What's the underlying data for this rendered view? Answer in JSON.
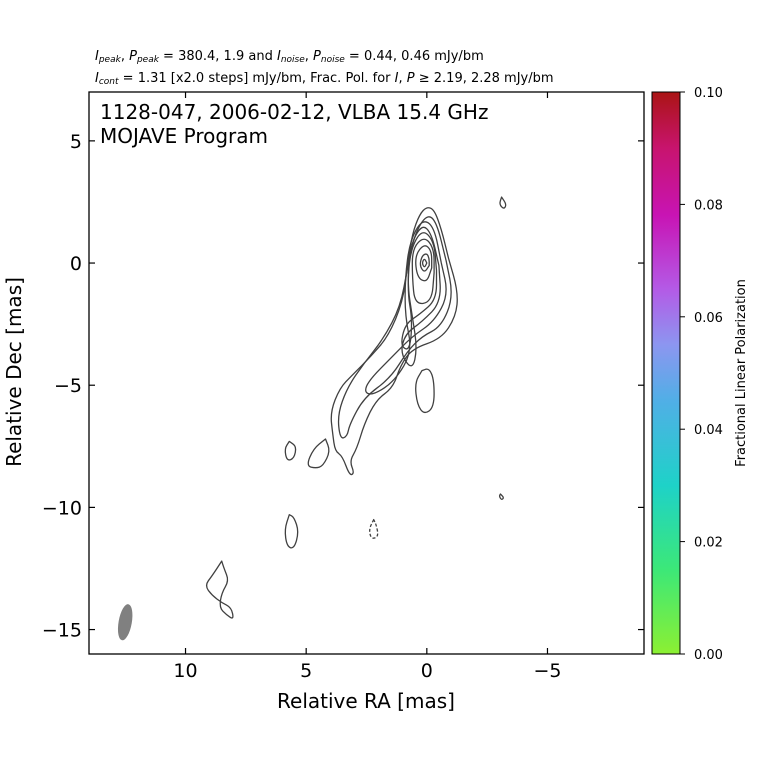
{
  "header": {
    "line1": {
      "parts": [
        {
          "t": "I",
          "i": true
        },
        {
          "t": "peak",
          "sub": true,
          "i": true
        },
        {
          "t": ", "
        },
        {
          "t": "P",
          "i": true
        },
        {
          "t": "peak",
          "sub": true,
          "i": true
        },
        {
          "t": " = 380.4, 1.9 and "
        },
        {
          "t": "I",
          "i": true
        },
        {
          "t": "noise",
          "sub": true,
          "i": true
        },
        {
          "t": ", "
        },
        {
          "t": "P",
          "i": true
        },
        {
          "t": "noise",
          "sub": true,
          "i": true
        },
        {
          "t": " = 0.44, 0.46 mJy/bm"
        }
      ]
    },
    "line2": {
      "parts": [
        {
          "t": "I",
          "i": true
        },
        {
          "t": "cont",
          "sub": true,
          "i": true
        },
        {
          "t": " = 1.31 [x2.0 steps] mJy/bm, Frac. Pol. for "
        },
        {
          "t": "I",
          "i": true
        },
        {
          "t": ", "
        },
        {
          "t": "P",
          "i": true
        },
        {
          "t": " ≥  2.19, 2.28 mJy/bm"
        }
      ]
    }
  },
  "chart_data": {
    "type": "contour",
    "annotation_line1": "1128-047, 2006-02-12, VLBA 15.4 GHz",
    "annotation_line2": "MOJAVE Program",
    "xlabel": "Relative RA [mas]",
    "ylabel": "Relative Dec [mas]",
    "xlim": [
      14,
      -9
    ],
    "ylim": [
      -16,
      7
    ],
    "xticks": [
      10,
      5,
      0,
      -5
    ],
    "xtick_labels": [
      "10",
      "5",
      "0",
      "−5"
    ],
    "yticks": [
      5,
      0,
      -5,
      -10,
      -15
    ],
    "ytick_labels": [
      "5",
      "0",
      "−5",
      "−10",
      "−15"
    ],
    "grid": false,
    "core": {
      "ra": 0.0,
      "dec": 0.0
    },
    "contour_levels_mJy": [
      1.31,
      2.62,
      5.24,
      10.48,
      20.96,
      41.92,
      83.84,
      167.68,
      335.36
    ],
    "contours": [
      {
        "level": "outer",
        "style": "solid",
        "points": [
          [
            -0.9,
            0.2
          ],
          [
            -1.3,
            -1.2
          ],
          [
            -1.2,
            -2.2
          ],
          [
            -0.6,
            -3.1
          ],
          [
            0.6,
            -3.5
          ],
          [
            1.1,
            -4.2
          ],
          [
            1.4,
            -5.1
          ],
          [
            2.1,
            -5.6
          ],
          [
            2.6,
            -6.6
          ],
          [
            2.9,
            -7.6
          ],
          [
            3.2,
            -8.1
          ],
          [
            3.0,
            -8.6
          ],
          [
            3.2,
            -8.7
          ],
          [
            3.5,
            -7.9
          ],
          [
            3.8,
            -7.7
          ],
          [
            3.9,
            -7.0
          ],
          [
            4.0,
            -6.1
          ],
          [
            3.6,
            -5.1
          ],
          [
            3.1,
            -4.6
          ],
          [
            2.3,
            -3.8
          ],
          [
            1.6,
            -3.0
          ],
          [
            1.0,
            -1.6
          ],
          [
            0.8,
            -0.1
          ],
          [
            0.6,
            1.2
          ],
          [
            0.3,
            2.0
          ],
          [
            0.0,
            2.3
          ],
          [
            -0.3,
            2.2
          ],
          [
            -0.6,
            1.4
          ],
          [
            -0.9,
            0.2
          ]
        ]
      },
      {
        "level": "2",
        "style": "solid",
        "points": [
          [
            -0.8,
            0.1
          ],
          [
            -1.1,
            -1.4
          ],
          [
            -0.6,
            -2.6
          ],
          [
            0.2,
            -3.0
          ],
          [
            0.8,
            -3.6
          ],
          [
            1.5,
            -4.7
          ],
          [
            2.6,
            -5.5
          ],
          [
            3.2,
            -6.6
          ],
          [
            3.3,
            -7.1
          ],
          [
            3.6,
            -7.2
          ],
          [
            3.7,
            -6.2
          ],
          [
            3.3,
            -5.1
          ],
          [
            2.6,
            -4.1
          ],
          [
            1.8,
            -3.1
          ],
          [
            1.1,
            -1.8
          ],
          [
            0.8,
            -0.2
          ],
          [
            0.5,
            1.2
          ],
          [
            0.0,
            2.0
          ],
          [
            -0.4,
            1.7
          ],
          [
            -0.8,
            0.1
          ]
        ]
      },
      {
        "level": "3",
        "style": "solid",
        "points": [
          [
            -0.6,
            0.0
          ],
          [
            -0.9,
            -1.3
          ],
          [
            -0.3,
            -2.4
          ],
          [
            0.6,
            -3.0
          ],
          [
            1.4,
            -3.8
          ],
          [
            2.4,
            -4.8
          ],
          [
            2.6,
            -5.3
          ],
          [
            2.2,
            -5.4
          ],
          [
            1.3,
            -4.8
          ],
          [
            0.6,
            -3.6
          ],
          [
            0.9,
            -2.2
          ],
          [
            0.9,
            -0.6
          ],
          [
            0.7,
            0.9
          ],
          [
            0.2,
            1.8
          ],
          [
            -0.3,
            1.5
          ],
          [
            -0.6,
            0.0
          ]
        ]
      },
      {
        "level": "4",
        "style": "solid",
        "points": [
          [
            -0.5,
            -0.1
          ],
          [
            -0.6,
            -1.6
          ],
          [
            0.2,
            -2.4
          ],
          [
            0.9,
            -2.9
          ],
          [
            1.1,
            -3.7
          ],
          [
            0.6,
            -4.4
          ],
          [
            0.4,
            -3.5
          ],
          [
            0.6,
            -2.2
          ],
          [
            0.8,
            -0.9
          ],
          [
            0.7,
            0.7
          ],
          [
            0.2,
            1.6
          ],
          [
            -0.2,
            1.2
          ],
          [
            -0.5,
            -0.1
          ]
        ]
      },
      {
        "level": "5",
        "style": "solid",
        "points": [
          [
            -0.4,
            -0.3
          ],
          [
            -0.4,
            -1.5
          ],
          [
            0.3,
            -2.1
          ],
          [
            0.9,
            -2.5
          ],
          [
            1.1,
            -3.4
          ],
          [
            0.7,
            -3.6
          ],
          [
            0.6,
            -2.3
          ],
          [
            0.8,
            -1.2
          ],
          [
            0.7,
            0.5
          ],
          [
            0.2,
            1.4
          ],
          [
            -0.3,
            0.9
          ],
          [
            -0.4,
            -0.3
          ]
        ]
      },
      {
        "level": "6",
        "style": "solid",
        "points": [
          [
            -0.3,
            -0.4
          ],
          [
            -0.2,
            -1.6
          ],
          [
            0.5,
            -1.7
          ],
          [
            0.6,
            -0.6
          ],
          [
            0.6,
            0.6
          ],
          [
            0.1,
            1.1
          ],
          [
            -0.3,
            0.6
          ],
          [
            -0.3,
            -0.4
          ]
        ]
      },
      {
        "level": "7",
        "style": "solid",
        "points": [
          [
            -0.2,
            -0.2
          ],
          [
            0.0,
            -0.8
          ],
          [
            0.4,
            -0.6
          ],
          [
            0.5,
            0.3
          ],
          [
            0.1,
            0.8
          ],
          [
            -0.2,
            0.5
          ],
          [
            -0.2,
            -0.2
          ]
        ]
      },
      {
        "level": "8",
        "style": "solid",
        "points": [
          [
            -0.1,
            -0.1
          ],
          [
            0.1,
            -0.4
          ],
          [
            0.3,
            -0.1
          ],
          [
            0.2,
            0.3
          ],
          [
            0.0,
            0.4
          ],
          [
            -0.1,
            0.2
          ],
          [
            -0.1,
            -0.1
          ]
        ]
      },
      {
        "level": "9",
        "style": "solid",
        "points": [
          [
            0.0,
            0.0
          ],
          [
            0.1,
            -0.2
          ],
          [
            0.2,
            0.0
          ],
          [
            0.1,
            0.2
          ],
          [
            0.0,
            0.0
          ]
        ]
      },
      {
        "level": "blob",
        "style": "solid",
        "points": [
          [
            0.2,
            -4.4
          ],
          [
            0.5,
            -4.9
          ],
          [
            0.4,
            -5.8
          ],
          [
            0.1,
            -6.2
          ],
          [
            -0.3,
            -5.9
          ],
          [
            -0.3,
            -4.8
          ],
          [
            -0.1,
            -4.3
          ],
          [
            0.2,
            -4.4
          ]
        ]
      },
      {
        "level": "blob",
        "style": "solid",
        "points": [
          [
            -3.1,
            2.7
          ],
          [
            -3.3,
            2.4
          ],
          [
            -3.2,
            2.2
          ],
          [
            -3.0,
            2.4
          ],
          [
            -3.1,
            2.7
          ]
        ]
      },
      {
        "level": "blob",
        "style": "solid",
        "points": [
          [
            -3.05,
            -9.45
          ],
          [
            -3.2,
            -9.6
          ],
          [
            -3.1,
            -9.7
          ],
          [
            -3.0,
            -9.55
          ],
          [
            -3.05,
            -9.45
          ]
        ]
      },
      {
        "level": "blob",
        "style": "solid",
        "points": [
          [
            5.7,
            -7.3
          ],
          [
            5.9,
            -7.6
          ],
          [
            5.8,
            -8.1
          ],
          [
            5.5,
            -8.0
          ],
          [
            5.4,
            -7.5
          ],
          [
            5.7,
            -7.3
          ]
        ]
      },
      {
        "level": "blob",
        "style": "solid",
        "points": [
          [
            4.2,
            -7.2
          ],
          [
            4.7,
            -7.6
          ],
          [
            5.0,
            -8.3
          ],
          [
            4.6,
            -8.4
          ],
          [
            4.3,
            -8.3
          ],
          [
            4.0,
            -7.7
          ],
          [
            4.2,
            -7.2
          ]
        ]
      },
      {
        "level": "blob",
        "style": "solid",
        "points": [
          [
            5.7,
            -10.3
          ],
          [
            5.9,
            -10.9
          ],
          [
            5.8,
            -11.6
          ],
          [
            5.5,
            -11.7
          ],
          [
            5.3,
            -11.0
          ],
          [
            5.5,
            -10.4
          ],
          [
            5.7,
            -10.3
          ]
        ]
      },
      {
        "level": "blob",
        "style": "dashed",
        "points": [
          [
            2.2,
            -10.5
          ],
          [
            2.4,
            -10.9
          ],
          [
            2.3,
            -11.3
          ],
          [
            2.0,
            -11.2
          ],
          [
            2.1,
            -10.7
          ],
          [
            2.2,
            -10.5
          ]
        ]
      },
      {
        "level": "blob",
        "style": "solid",
        "points": [
          [
            8.5,
            -12.2
          ],
          [
            8.9,
            -12.8
          ],
          [
            9.2,
            -13.2
          ],
          [
            8.9,
            -13.6
          ],
          [
            8.5,
            -13.9
          ],
          [
            8.1,
            -14.1
          ],
          [
            8.0,
            -14.6
          ],
          [
            8.3,
            -14.4
          ],
          [
            8.6,
            -14.1
          ],
          [
            8.5,
            -13.5
          ],
          [
            8.2,
            -13.0
          ],
          [
            8.4,
            -12.5
          ],
          [
            8.5,
            -12.2
          ]
        ]
      }
    ],
    "beam": {
      "ra": 12.5,
      "dec": -14.7,
      "major_mas": 1.5,
      "minor_mas": 0.55,
      "pa_deg": -10,
      "color": "#808080"
    },
    "colorbar": {
      "label": "Fractional Linear Polarization",
      "range": [
        0.0,
        0.1
      ],
      "ticks": [
        0.0,
        0.02,
        0.04,
        0.06,
        0.08,
        0.1
      ],
      "tick_labels": [
        "0.00",
        "0.02",
        "0.04",
        "0.06",
        "0.08",
        "0.10"
      ],
      "stops": [
        {
          "v": 0.0,
          "color": "#8cf032"
        },
        {
          "v": 0.015,
          "color": "#3ce878"
        },
        {
          "v": 0.03,
          "color": "#1ed2c8"
        },
        {
          "v": 0.045,
          "color": "#50afe6"
        },
        {
          "v": 0.055,
          "color": "#8c96f0"
        },
        {
          "v": 0.065,
          "color": "#b45ae6"
        },
        {
          "v": 0.078,
          "color": "#c814b4"
        },
        {
          "v": 0.09,
          "color": "#c8146e"
        },
        {
          "v": 0.1,
          "color": "#aa1414"
        }
      ]
    },
    "contour_color": "#404040"
  }
}
